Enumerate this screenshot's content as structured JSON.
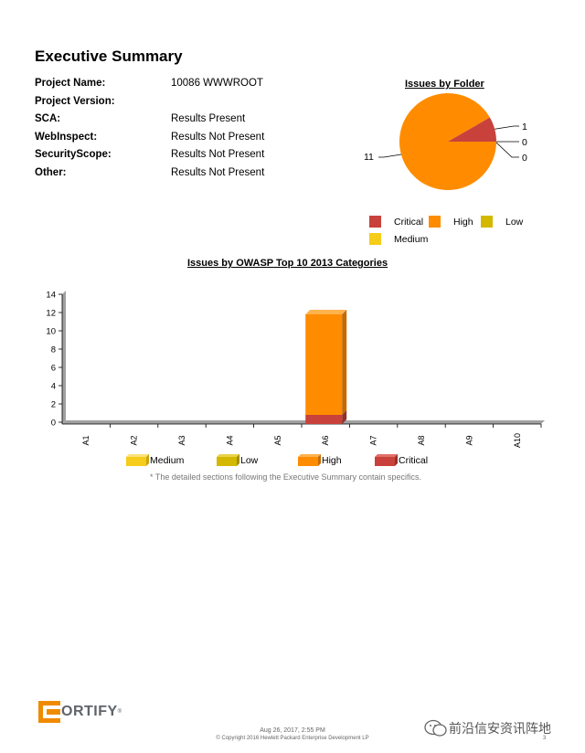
{
  "title": "Executive Summary",
  "info": [
    {
      "label": "Project Name:",
      "value": "10086 WWWROOT"
    },
    {
      "label": "Project Version:",
      "value": ""
    },
    {
      "label": "SCA:",
      "value": "Results Present"
    },
    {
      "label": "WebInspect:",
      "value": "Results Not Present"
    },
    {
      "label": "SecurityScope:",
      "value": "Results Not Present"
    },
    {
      "label": "Other:",
      "value": "Results Not Present"
    }
  ],
  "colors": {
    "critical": "#c9413b",
    "high": "#ff8c00",
    "low": "#d4b800",
    "medium": "#f5cc1a"
  },
  "chart_data": [
    {
      "type": "pie",
      "title": "Issues by Folder",
      "slices": [
        {
          "name": "High",
          "value": 11
        },
        {
          "name": "Critical",
          "value": 1
        },
        {
          "name": "Low",
          "value": 0
        },
        {
          "name": "Medium",
          "value": 0
        }
      ],
      "labels": [
        "11",
        "1",
        "0",
        "0"
      ],
      "legend": [
        "Critical",
        "High",
        "Low",
        "Medium"
      ]
    },
    {
      "type": "bar",
      "title": "Issues by OWASP Top 10 2013 Categories",
      "categories": [
        "A1",
        "A2",
        "A3",
        "A4",
        "A5",
        "A6",
        "A7",
        "A8",
        "A9",
        "A10"
      ],
      "series": [
        {
          "name": "Medium",
          "values": [
            0,
            0,
            0,
            0,
            0,
            0,
            0,
            0,
            0,
            0
          ]
        },
        {
          "name": "Low",
          "values": [
            0,
            0,
            0,
            0,
            0,
            0,
            0,
            0,
            0,
            0
          ]
        },
        {
          "name": "High",
          "values": [
            0,
            0,
            0,
            0,
            0,
            11,
            0,
            0,
            0,
            0
          ]
        },
        {
          "name": "Critical",
          "values": [
            0,
            0,
            0,
            0,
            0,
            1,
            0,
            0,
            0,
            0
          ]
        }
      ],
      "yticks": [
        "0",
        "2",
        "4",
        "6",
        "8",
        "10",
        "12",
        "14"
      ],
      "ylim": [
        0,
        14
      ],
      "stacked": true,
      "grid": false,
      "legend": [
        "Medium",
        "Low",
        "High",
        "Critical"
      ]
    }
  ],
  "note": "* The detailed sections following the Executive Summary contain specifics.",
  "footer": {
    "logo_letter": "F",
    "logo_rest": "ORTIFY",
    "logo_tm": "®",
    "date": "Aug 26, 2017, 2:55 PM",
    "copyright": "© Copyright 2016 Hewlett Packard Enterprise Development LP",
    "page": "3"
  },
  "watermark": "前沿信安资讯阵地"
}
